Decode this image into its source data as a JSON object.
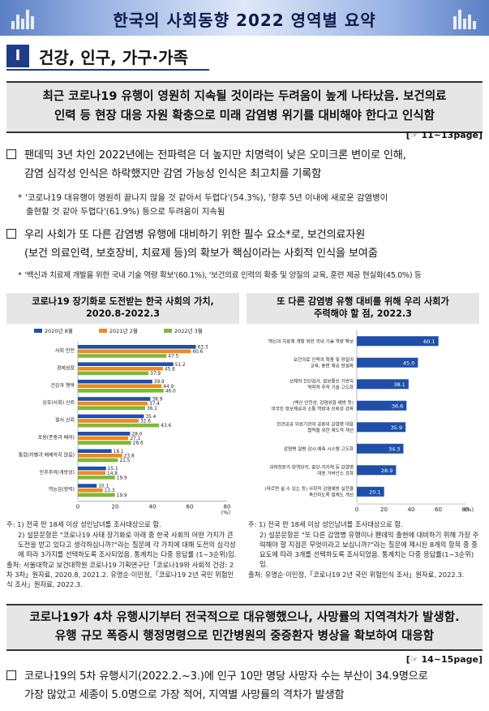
{
  "header": {
    "title": "한국의 사회동향 2022 영역별 요약"
  },
  "section": {
    "number": "Ⅰ",
    "title": "건강, 인구, 가구·가족"
  },
  "summary1": {
    "line1": "최근 코로나19 유행이 영원히 지속될 것이라는 두려움이 높게 나타났음. 보건의료",
    "line2": "인력 등 현장 대응 자원 확충으로 미래 감염병 위기를 대비해야 한다고 인식함",
    "pageref": "[☞ 11~13page]"
  },
  "bullets": [
    {
      "line1": "팬데믹 3년 차인 2022년에는 전파력은 더 높지만 치명력이 낮은 오미크론 변이로 인해,",
      "line2": "감염 심각성 인식은 하락했지만 감염 가능성 인식은 최고치를 기록함",
      "note1": "'코로나19 대유행이 영원히 끝나지 않을 것 같아서 두렵다'(54.3%), '향후 5년 이내에 새로운 감염병이",
      "note2": "출현할 것 같아 두렵다'(61.9%) 등으로 두려움이 지속됨"
    },
    {
      "line1": "우리 사회가 또 다른 감염병 유행에 대비하기 위한 필수 요소*로, 보건의료자원",
      "line2": "(보건 의료인력, 보호장비, 치료제 등)의 확보가 핵심이라는 사회적 인식을 보여줌",
      "note1": "'백신과 치료제 개발을 위한 국내 기술 역량 확보'(60.1%), '보건의료 인력의 확충 및 양질의 교육, 훈련 제공 현실화(45.0%) 등"
    }
  ],
  "chart_data": [
    {
      "type": "bar",
      "orientation": "horizontal",
      "title": "코로나19 장기화로 도전받는 한국 사회의 가치, 2020.8-2022.3",
      "categories": [
        "사회 안전",
        "경제성장",
        "건강과 행복",
        "상호(사회) 신뢰",
        "절서 신뢰",
        "포용(존중과 배려)",
        "통합(차별과 배제하지 않음)",
        "민주주의(개방성)",
        "역능감(향력)"
      ],
      "series": [
        {
          "name": "2020년 8월",
          "color": "#1f4fa8",
          "values": [
            63.3,
            51.2,
            39.9,
            38.9,
            35.4,
            28.0,
            18.1,
            15.1,
            10.1
          ]
        },
        {
          "name": "2021년 2월",
          "color": "#f08a1c",
          "values": [
            60.6,
            45.6,
            44.9,
            37.4,
            32.6,
            27.1,
            23.8,
            14.8,
            13.3
          ]
        },
        {
          "name": "2022년 3월",
          "color": "#7fb83a",
          "values": [
            47.5,
            37.9,
            46.0,
            36.1,
            43.6,
            28.6,
            21.5,
            19.9,
            19.9
          ]
        }
      ],
      "xlim": [
        0,
        80
      ],
      "xticks": [
        0,
        20,
        40,
        60,
        80
      ],
      "unit": "(%)",
      "legend": "top"
    },
    {
      "type": "bar",
      "orientation": "horizontal",
      "title": "또 다른 감염병 유행 대비를 위해 우리 사회가 주력해야 할 점, 2022.3",
      "categories": [
        [
          "백신과 치료제 개발 위한 국내 기술 역량 확보"
        ],
        [
          "보건의료 인력의 확충 및 양질의",
          "교육, 훈련 제공 현실화"
        ],
        [
          "선제적 진단검사, 접보통신 기반의",
          "역학적 추적 기술 고도화"
        ],
        [
          "(백신 안전성, 감염위험 예방 등)",
          "대국민 정보제공과 소통 역량과 신뢰성 강화"
        ],
        [
          "민관공공 의료기관의 공동의 감염병 대응",
          "협력을 위한 제도적 개선"
        ],
        [
          "감염병 질병 감시·예측 시스템 고도화"
        ],
        [
          "과학전문가-방역당국, 중앙-지자체 등 감염병",
          "대응 거버넌스 강화"
        ],
        [
          "(마르면 쉴 수 있는 등) 사회적 감염예방 실천을",
          "촉진하도록 법제도 개선"
        ]
      ],
      "values": [
        60.1,
        45.0,
        38.1,
        36.6,
        35.9,
        34.3,
        28.9,
        20.1
      ],
      "color": "#1f4fa8",
      "xlim": [
        0,
        80
      ],
      "xticks": [
        0,
        20,
        40,
        60,
        80
      ],
      "unit": "(%)"
    }
  ],
  "charts": {
    "left_title_line1": "코로나19 장기화로 도전받는 한국 사회의 가치,",
    "left_title_line2": "2020.8-2022.3",
    "right_title_line1": "또 다른 감염병 유행 대비를 위해 우리 사회가",
    "right_title_line2": "주력해야 할 점, 2022.3"
  },
  "notes_left": {
    "n1": "주: 1) 전국 만 18세 이상 성인남녀를 조사대상으로 함.",
    "n2": "2) 설문문항은 \"코로나19 사태 장기화로 아래 중 한국 사회의 어떤 가치가 큰 도전을 받고 있다고 생각하십니까?\"라는 질문에 각 가치에 대해 도전의 심각성에 따라 3가지를 선택하도록 조사되었음. 통계치는 다중 응답률 (1~3순위)임.",
    "src": "출처: 서울대학교 보건대학원 코로나19 기획연구단「코로나19와 사회적 건강: 2차 3차」원자료, 2020.8, 2021.2. 유명순·이민정,「코로나19 2년 국민 위험인식 조사」원자료, 2022.3."
  },
  "notes_right": {
    "n1": "주: 1) 전국 만 18세 이상 성인남녀를 조사대상으로 함.",
    "n2": "2) 설문문항은 \"또 다른 감염병 유행이나 팬데믹 출현에 대비하기 위해 가장 주력해야 할 지점은 무엇이라고 보십니까?\"라는 질문에 제시된 8개의 항목 중 중요도에 따라 3개를 선택하도록 조사되었음. 통계치는 다중 응답률(1~3순위)임.",
    "src": "출처: 유명순·이민정,「코로나19 2년 국민 위험인식 조사」원자료, 2022.3."
  },
  "summary2": {
    "line1": "코로나19가 4차 유행시기부터 전국적으로 대유행했으나, 사망률의 지역격차가 발생함.",
    "line2": "유행 규모 폭증시 행정명령으로 민간병원의 중증환자 병상을 확보하여 대응함",
    "pageref": "[☞ 14~15page]"
  },
  "bullet3": {
    "line1": "코로나19의 5차 유행시기(2022.2.~3.)에 인구 10만 명당 사망자 수는 부산이 34.9명으로",
    "line2": "가장 많았고 세종이 5.0명으로 가장 적어, 지역별 사망률의 격차가 발생함"
  }
}
